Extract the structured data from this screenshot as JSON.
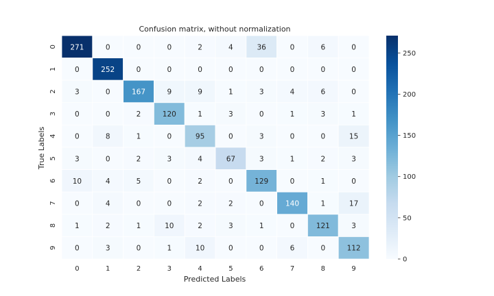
{
  "chart_data": {
    "type": "heatmap",
    "title": "Confusion matrix, without normalization",
    "xlabel": "Predicted Labels",
    "ylabel": "True Labels",
    "x_categories": [
      "0",
      "1",
      "2",
      "3",
      "4",
      "5",
      "6",
      "7",
      "8",
      "9"
    ],
    "y_categories": [
      "0",
      "1",
      "2",
      "3",
      "4",
      "5",
      "6",
      "7",
      "8",
      "9"
    ],
    "values": [
      [
        271,
        0,
        0,
        0,
        2,
        4,
        36,
        0,
        6,
        0
      ],
      [
        0,
        252,
        0,
        0,
        0,
        0,
        0,
        0,
        0,
        0
      ],
      [
        3,
        0,
        167,
        9,
        9,
        1,
        3,
        4,
        6,
        0
      ],
      [
        0,
        0,
        2,
        120,
        1,
        3,
        0,
        1,
        3,
        1
      ],
      [
        0,
        8,
        1,
        0,
        95,
        0,
        3,
        0,
        0,
        15
      ],
      [
        3,
        0,
        2,
        3,
        4,
        67,
        3,
        1,
        2,
        3
      ],
      [
        10,
        4,
        5,
        0,
        2,
        0,
        129,
        0,
        1,
        0
      ],
      [
        0,
        4,
        0,
        0,
        2,
        2,
        0,
        140,
        1,
        17
      ],
      [
        1,
        2,
        1,
        10,
        2,
        3,
        1,
        0,
        121,
        3
      ],
      [
        0,
        3,
        0,
        1,
        10,
        0,
        0,
        6,
        0,
        112
      ]
    ],
    "colormap": "Blues",
    "vmin": 0,
    "vmax": 271,
    "colorbar_ticks": [
      0,
      50,
      100,
      150,
      200,
      250
    ],
    "grid": false,
    "colorbar": "right"
  }
}
